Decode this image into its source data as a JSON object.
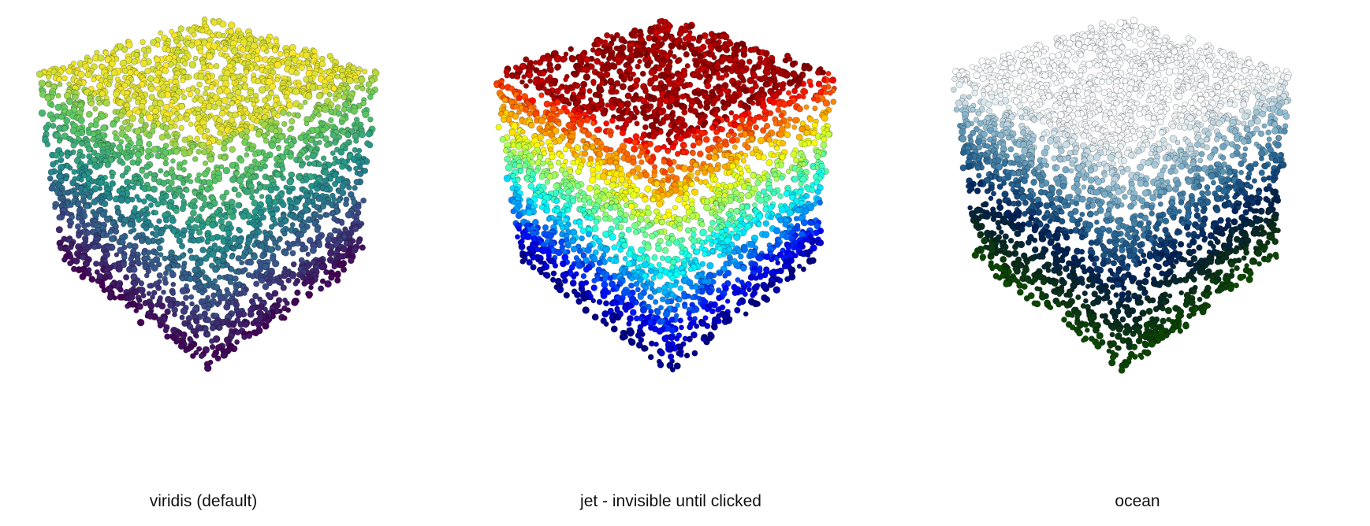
{
  "panels": [
    {
      "id": "viridis",
      "caption": "viridis (default)",
      "colormap": "viridis",
      "stops": [
        "#440154",
        "#3b528b",
        "#21918c",
        "#5ec962",
        "#fde725"
      ]
    },
    {
      "id": "jet",
      "caption": "jet - invisible until clicked",
      "colormap": "jet",
      "stops": [
        "#00007f",
        "#0000ff",
        "#0080ff",
        "#00ffff",
        "#80ff80",
        "#ffff00",
        "#ff8000",
        "#ff0000",
        "#7f0000"
      ]
    },
    {
      "id": "ocean",
      "caption": "ocean",
      "colormap": "ocean",
      "stops": [
        "#0d4a00",
        "#0a2a20",
        "#00225a",
        "#2a6a98",
        "#7fb0c8",
        "#e6eef2",
        "#ffffff"
      ]
    }
  ]
}
